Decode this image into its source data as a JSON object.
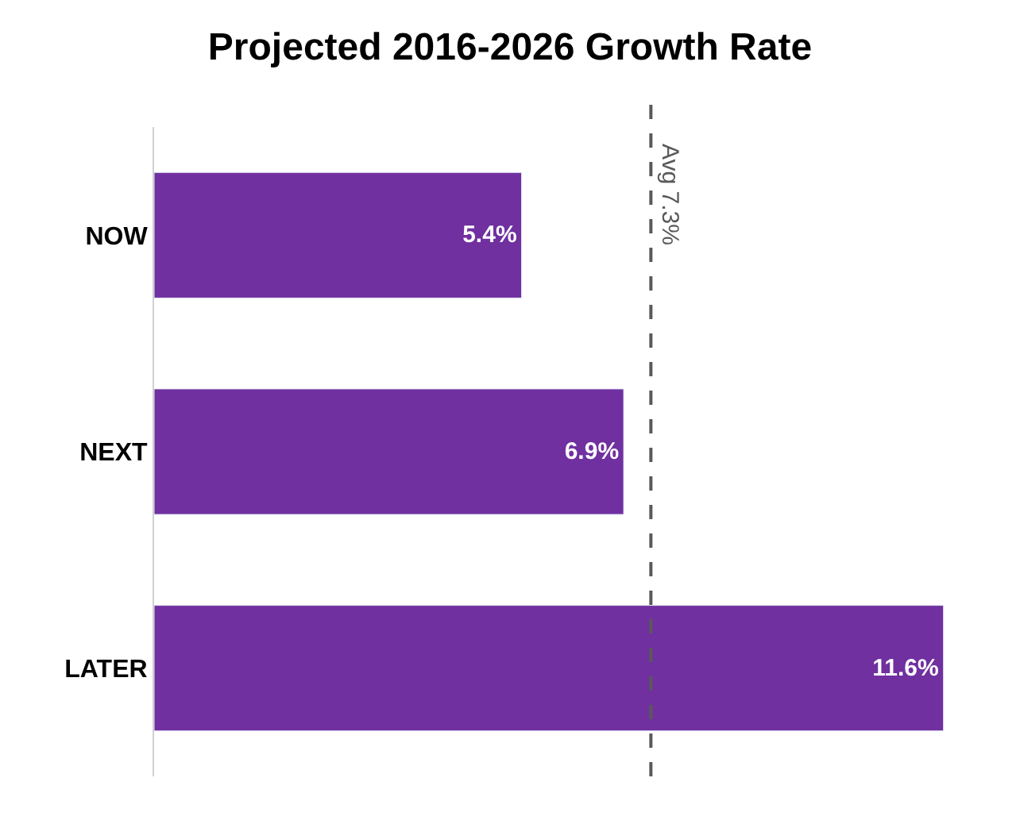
{
  "chart_data": {
    "type": "bar",
    "orientation": "horizontal",
    "title": "Projected 2016-2026 Growth Rate",
    "categories": [
      "NOW",
      "NEXT",
      "LATER"
    ],
    "values": [
      5.4,
      6.9,
      11.6
    ],
    "value_labels": [
      "5.4%",
      "6.9%",
      "11.6%"
    ],
    "color": "#7030a0",
    "tick_labels": "y",
    "ref_lines": [
      {
        "axis": "x",
        "value": 7.3,
        "label": "Avg 7.3%",
        "color": "#595959",
        "line_style": "dashed"
      }
    ]
  }
}
